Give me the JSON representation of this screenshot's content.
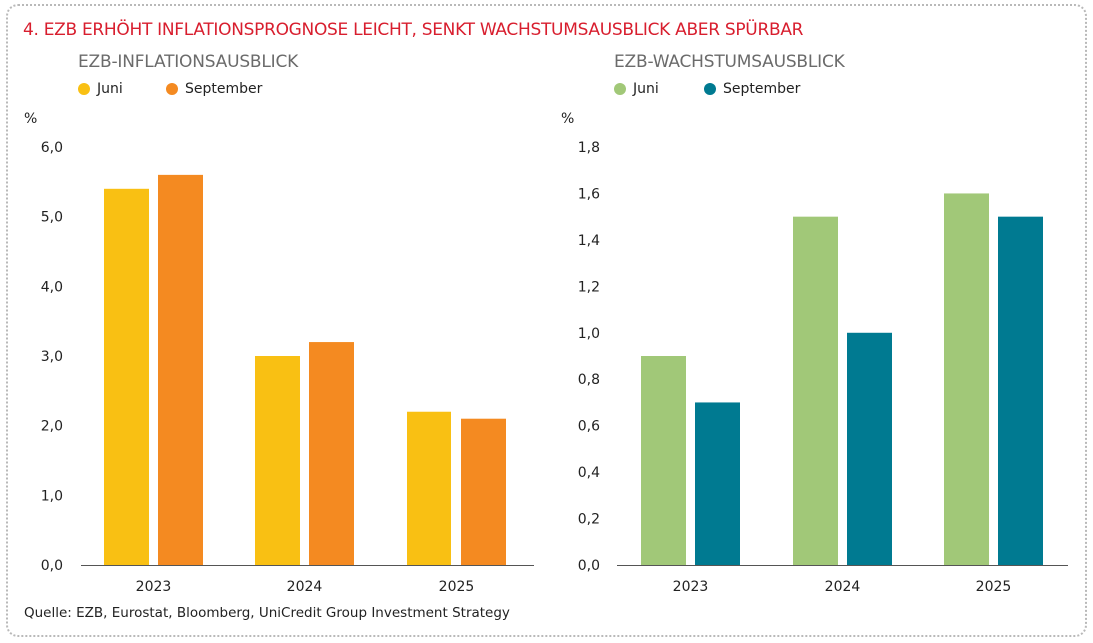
{
  "main_title": "4.   EZB ERHÖHT INFLATIONSPROGNOSE LEICHT, SENKT WACHSTUMSAUSBLICK ABER SPÜRBAR",
  "source": "Quelle: EZB, Eurostat, Bloomberg, UniCredit Group Investment Strategy",
  "chart_data": [
    {
      "type": "bar",
      "title": "EZB-INFLATIONSAUSBLICK",
      "ylabel": "%",
      "categories": [
        "2023",
        "2024",
        "2025"
      ],
      "series": [
        {
          "name": "Juni",
          "color": "#f9c013",
          "values": [
            5.4,
            3.0,
            2.2
          ]
        },
        {
          "name": "September",
          "color": "#f48a21",
          "values": [
            5.6,
            3.2,
            2.1
          ]
        }
      ],
      "ylim": [
        0,
        6
      ],
      "yticks": [
        "0,0",
        "1,0",
        "2,0",
        "3,0",
        "4,0",
        "5,0",
        "6,0"
      ],
      "grid": false,
      "legend": "top-left"
    },
    {
      "type": "bar",
      "title": "EZB-WACHSTUMSAUSBLICK",
      "ylabel": "%",
      "categories": [
        "2023",
        "2024",
        "2025"
      ],
      "series": [
        {
          "name": "Juni",
          "color": "#a1c878",
          "values": [
            0.9,
            1.5,
            1.6
          ]
        },
        {
          "name": "September",
          "color": "#007a91",
          "values": [
            0.7,
            1.0,
            1.5
          ]
        }
      ],
      "ylim": [
        0,
        1.8
      ],
      "yticks": [
        "0,0",
        "0,2",
        "0,4",
        "0,6",
        "0,8",
        "1,0",
        "1,2",
        "1,4",
        "1,6",
        "1,8"
      ],
      "grid": false,
      "legend": "top-left"
    }
  ]
}
